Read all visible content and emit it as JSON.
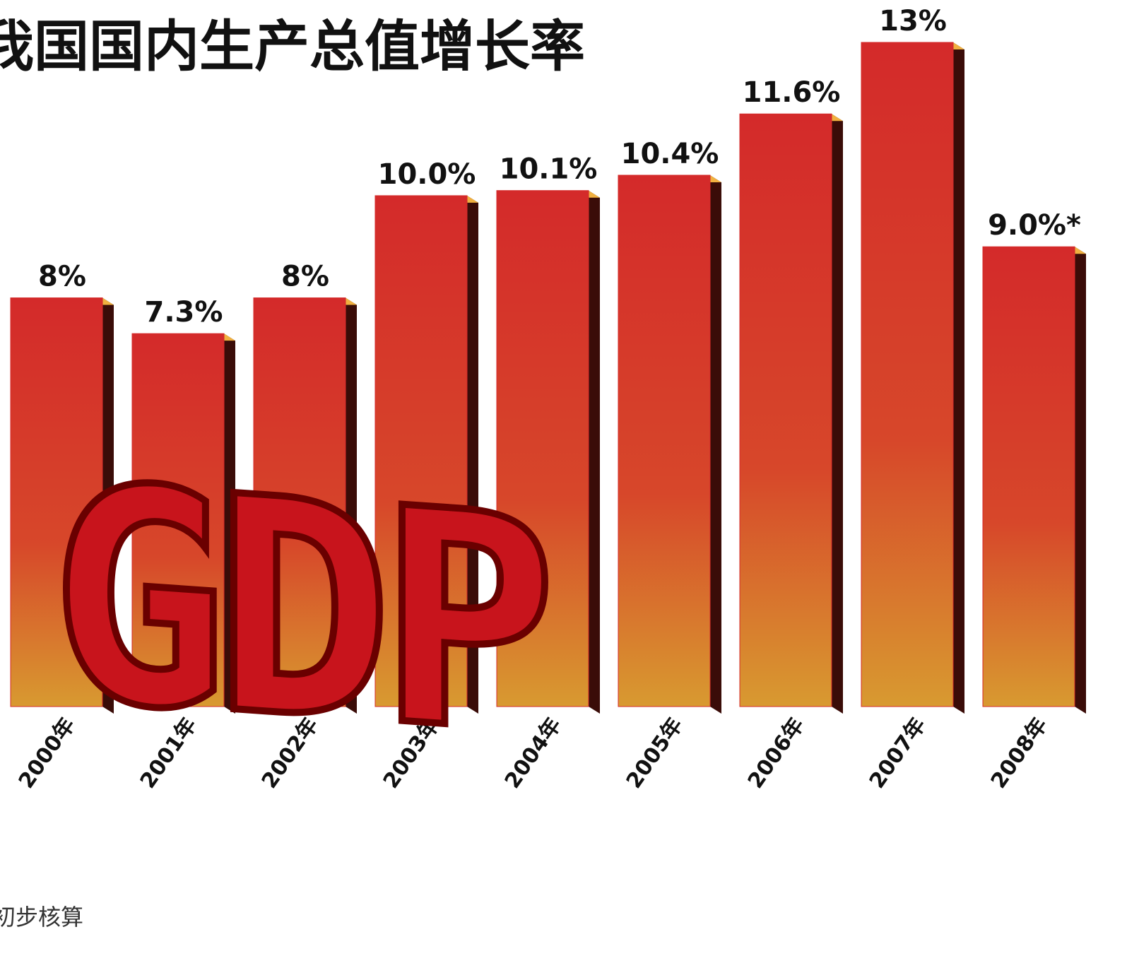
{
  "chart_data": {
    "type": "bar",
    "title": "我国国内生产总值增长率",
    "emblem": "GDP",
    "note": "初步核算",
    "categories": [
      "2000年",
      "2001年",
      "2002年",
      "2003年",
      "2004年",
      "2005年",
      "2006年",
      "2007年",
      "2008年"
    ],
    "values": [
      8,
      7.3,
      8,
      10.0,
      10.1,
      10.4,
      11.6,
      13,
      9.0
    ],
    "value_labels": [
      "8%",
      "7.3%",
      "8%",
      "10.0%",
      "10.1%",
      "10.4%",
      "11.6%",
      "13%",
      "9.0%*"
    ],
    "color": "#d42a2a"
  }
}
